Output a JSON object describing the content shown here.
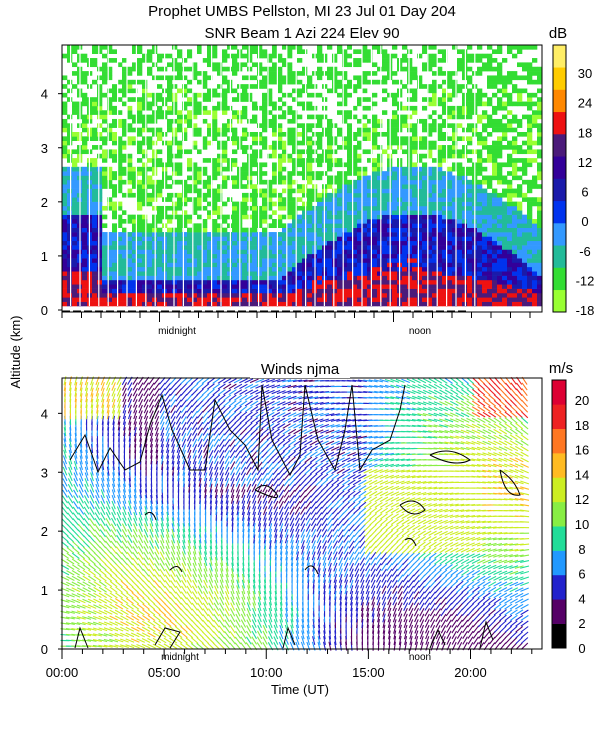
{
  "header": {
    "title_line1": "Prophet  UMBS Pellston, MI  23 Jul 01 Day 204",
    "title_line2": "SNR Beam 1 Azi 224 Elev 90"
  },
  "shared": {
    "ylabel": "Altitude (km)",
    "xlabel": "Time (UT)",
    "midnight_label": "midnight",
    "noon_label": "noon"
  },
  "chart_data": [
    {
      "type": "heatmap",
      "title": "SNR Beam 1 Azi 224 Elev 90",
      "ylabel": "Altitude (km)",
      "ylim": [
        0,
        4.9
      ],
      "xlim_hours": [
        0,
        24
      ],
      "y_ticks": [
        "0",
        "1",
        "2",
        "3",
        "4"
      ],
      "colorbar": {
        "unit": "dB",
        "ticks": [
          "-18",
          "-12",
          "-6",
          "0",
          "6",
          "12",
          "18",
          "24",
          "30"
        ],
        "colors": [
          "#99ff33",
          "#33dd33",
          "#22bb99",
          "#3399ff",
          "#0033ee",
          "#1a1aaa",
          "#330099",
          "#4b1a7a",
          "#ee1111",
          "#ff8800",
          "#ffcc00",
          "#ffee66"
        ]
      },
      "annotations": [
        "midnight",
        "noon"
      ]
    },
    {
      "type": "heatmap",
      "title": "Winds njma",
      "xlabel": "Time (UT)",
      "ylabel": "Altitude (km)",
      "ylim": [
        0,
        4.6
      ],
      "xlim_hours": [
        0,
        23.5
      ],
      "x_ticks": [
        "00:00",
        "05:00",
        "10:00",
        "15:00",
        "20:00"
      ],
      "y_ticks": [
        "0",
        "1",
        "2",
        "3",
        "4"
      ],
      "colorbar": {
        "unit": "m/s",
        "ticks": [
          "0",
          "2",
          "4",
          "6",
          "8",
          "10",
          "12",
          "14",
          "16",
          "18",
          "20"
        ],
        "colors": [
          "#000000",
          "#550066",
          "#2222cc",
          "#2299ff",
          "#22dd99",
          "#88ee44",
          "#ccee22",
          "#ffbb22",
          "#ff7722",
          "#ee2222",
          "#dd0033"
        ]
      },
      "annotations": [
        "midnight",
        "noon"
      ]
    }
  ]
}
